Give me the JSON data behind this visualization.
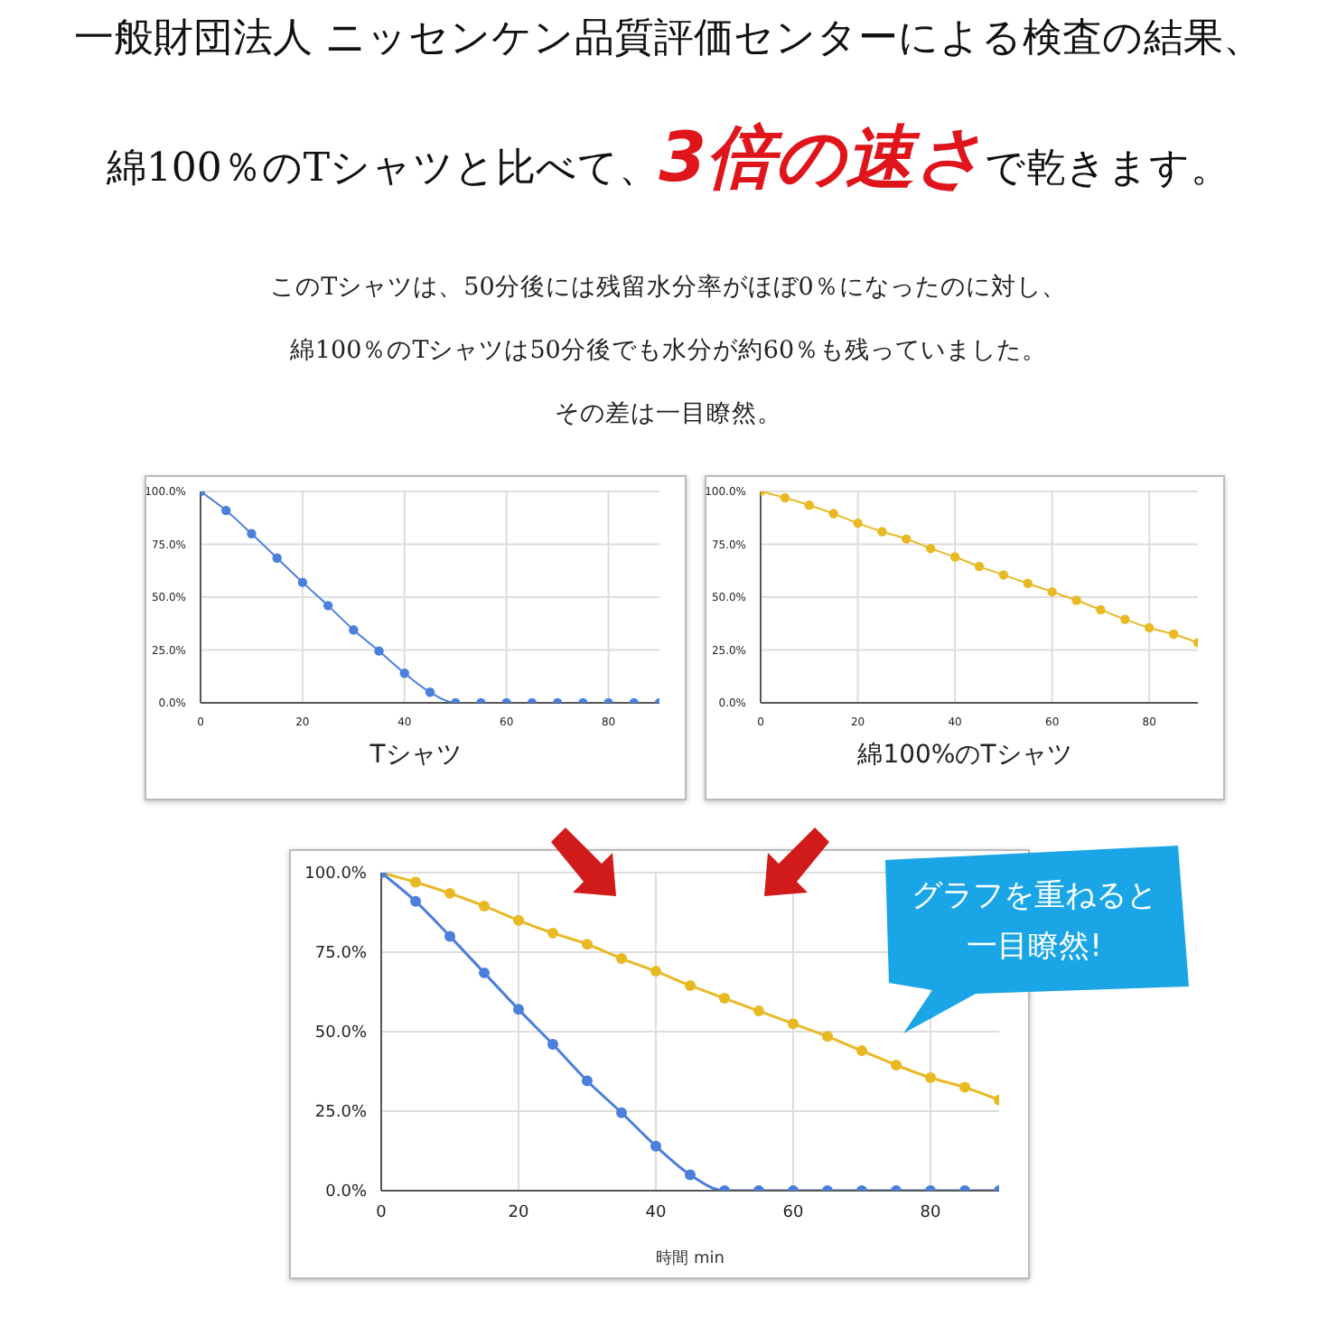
{
  "chart_data": [
    {
      "type": "line",
      "title": "Tシャツ",
      "annotations": [
        "一般財団法人 ニッセンケン品質評価センターによる検査の結果、",
        "綿100％のTシャツと比べて、",
        "3倍の速さ",
        "で乾きます。",
        "このTシャツは、50分後には残留水分率がほぼ0％になったのに対し、",
        "綿100％のTシャツは50分後でも水分が約60％も残っていました。",
        "その差は一目瞭然。"
      ],
      "x": [
        0,
        5,
        10,
        15,
        20,
        25,
        30,
        35,
        40,
        45,
        50,
        55,
        60,
        65,
        70,
        75,
        80,
        85,
        90
      ],
      "series": [
        {
          "color": "#4a7fdc",
          "values": [
            100,
            91,
            80,
            68.5,
            57,
            46,
            34.5,
            24.5,
            14,
            5,
            0,
            0,
            0,
            0,
            0,
            0,
            0,
            0,
            0
          ]
        }
      ],
      "xlim": [
        0,
        90
      ],
      "xticks": [
        0,
        20,
        40,
        60,
        80
      ],
      "ylim": [
        0,
        100
      ],
      "yticks": [
        {
          "value": 0,
          "label": "0.0%"
        },
        {
          "value": 25,
          "label": "25.0%"
        },
        {
          "value": 50,
          "label": "50.0%"
        },
        {
          "value": 75,
          "label": "75.0%"
        },
        {
          "value": 100,
          "label": "100.0%"
        }
      ],
      "grid": true,
      "marker": "circle",
      "legend": false
    },
    {
      "type": "line",
      "title": "綿100%のTシャツ",
      "x": [
        0,
        5,
        10,
        15,
        20,
        25,
        30,
        35,
        40,
        45,
        50,
        55,
        60,
        65,
        70,
        75,
        80,
        85,
        90
      ],
      "series": [
        {
          "color": "#e8b923",
          "values": [
            100,
            97,
            93.5,
            89.5,
            85,
            81,
            77.5,
            73,
            69,
            64.5,
            60.5,
            56.5,
            52.5,
            48.5,
            44,
            39.5,
            35.5,
            32.5,
            28.5
          ]
        }
      ],
      "xlim": [
        0,
        90
      ],
      "xticks": [
        0,
        20,
        40,
        60,
        80
      ],
      "ylim": [
        0,
        100
      ],
      "yticks": [
        {
          "value": 0,
          "label": "0.0%"
        },
        {
          "value": 25,
          "label": "25.0%"
        },
        {
          "value": 50,
          "label": "50.0%"
        },
        {
          "value": 75,
          "label": "75.0%"
        },
        {
          "value": 100,
          "label": "100.0%"
        }
      ],
      "grid": true,
      "marker": "circle",
      "legend": false
    },
    {
      "type": "line",
      "xlabel": "時間 min",
      "annotations": [
        "グラフを重ねると",
        "一目瞭然!"
      ],
      "x": [
        0,
        5,
        10,
        15,
        20,
        25,
        30,
        35,
        40,
        45,
        50,
        55,
        60,
        65,
        70,
        75,
        80,
        85,
        90
      ],
      "series": [
        {
          "color": "#e8b923",
          "values": [
            100,
            97,
            93.5,
            89.5,
            85,
            81,
            77.5,
            73,
            69,
            64.5,
            60.5,
            56.5,
            52.5,
            48.5,
            44,
            39.5,
            35.5,
            32.5,
            28.5
          ]
        },
        {
          "color": "#4a7fdc",
          "values": [
            100,
            91,
            80,
            68.5,
            57,
            46,
            34.5,
            24.5,
            14,
            5,
            0,
            0,
            0,
            0,
            0,
            0,
            0,
            0,
            0
          ]
        }
      ],
      "xlim": [
        0,
        90
      ],
      "xticks": [
        0,
        20,
        40,
        60,
        80
      ],
      "ylim": [
        0,
        100
      ],
      "yticks": [
        {
          "value": 0,
          "label": "0.0%"
        },
        {
          "value": 25,
          "label": "25.0%"
        },
        {
          "value": 50,
          "label": "50.0%"
        },
        {
          "value": 75,
          "label": "75.0%"
        },
        {
          "value": 100,
          "label": "100.0%"
        }
      ],
      "grid": true,
      "marker": "circle",
      "legend": false
    }
  ]
}
